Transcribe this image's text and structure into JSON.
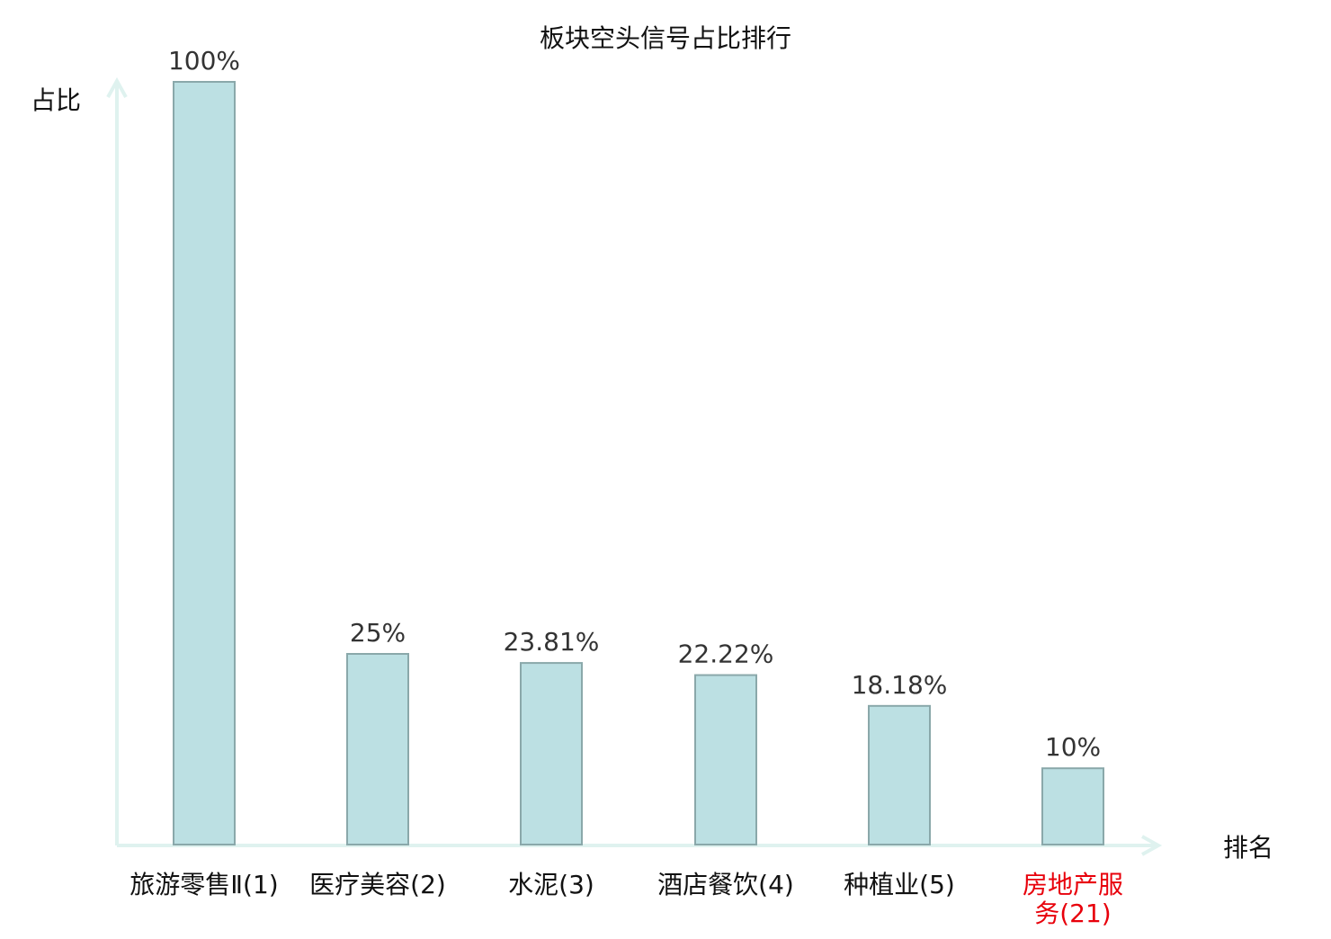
{
  "chart_data": {
    "type": "bar",
    "title": "板块空头信号占比排行",
    "xlabel": "排名",
    "ylabel": "占比",
    "categories": [
      "旅游零售Ⅱ(1)",
      "医疗美容(2)",
      "水泥(3)",
      "酒店餐饮(4)",
      "种植业(5)",
      "房地产服务(21)"
    ],
    "values": [
      100,
      25,
      23.81,
      22.22,
      18.18,
      10
    ],
    "value_labels": [
      "100%",
      "25%",
      "23.81%",
      "22.22%",
      "18.18%",
      "10%"
    ],
    "highlighted_category_index": 5,
    "ylim": [
      0,
      100
    ],
    "grid": false,
    "legend": "none",
    "colors": {
      "bar_fill": "#bce0e3",
      "bar_stroke": "#8aa8aa",
      "axis": "#dff2ef",
      "highlight_label": "#e8000b",
      "label": "#111111",
      "value_label": "#333333"
    }
  }
}
